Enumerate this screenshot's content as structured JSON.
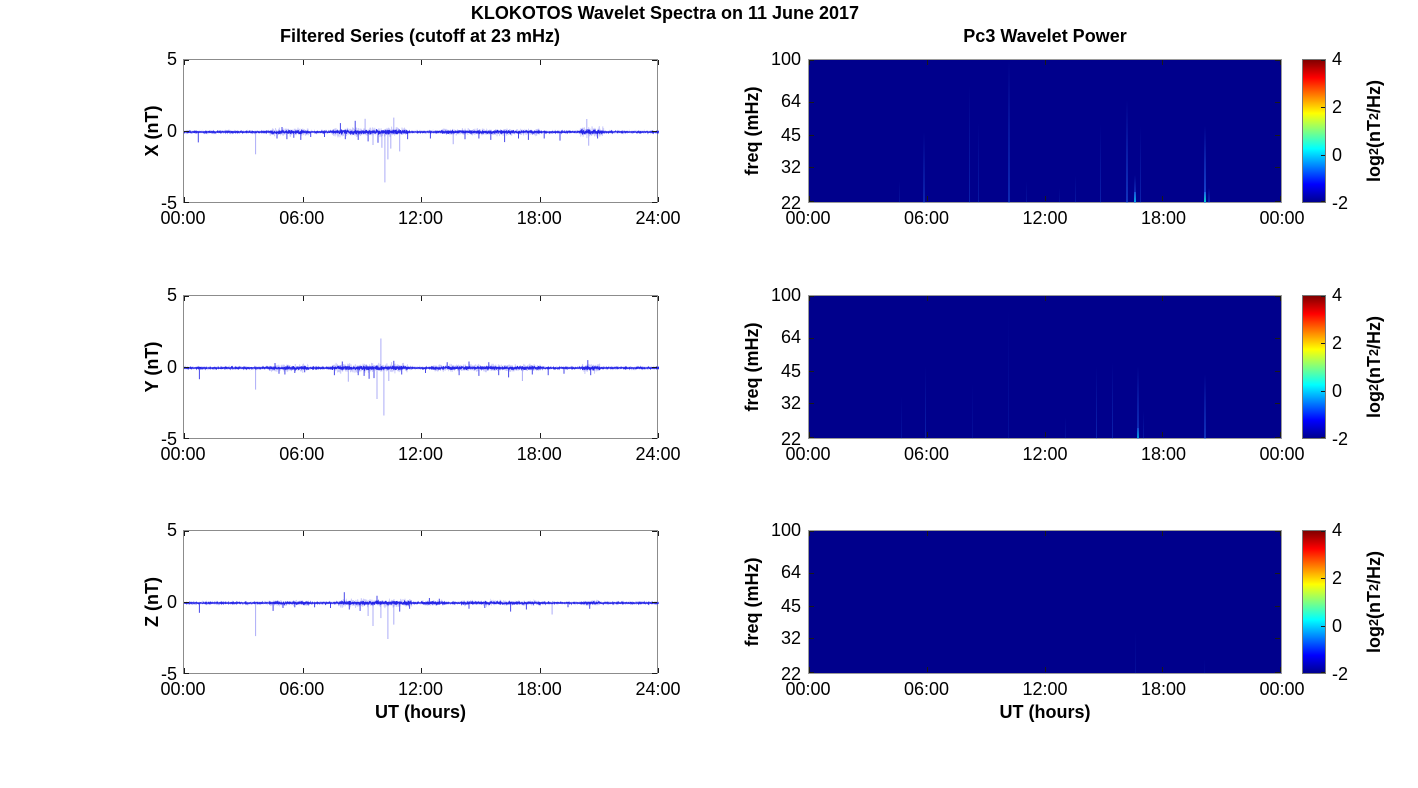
{
  "title": "KLOKOTOS Wavelet Spectra on 11 June 2017",
  "chart_data": {
    "left_column": {
      "type": "line",
      "title": "Filtered Series (cutoff at 23 mHz)",
      "xlabel": "UT (hours)",
      "xlim_hours": [
        0,
        24
      ],
      "xtick_labels": [
        "00:00",
        "06:00",
        "12:00",
        "18:00",
        "24:00"
      ],
      "ylim": [
        -5,
        5
      ],
      "ytick_labels": [
        "5",
        "0",
        "-5"
      ],
      "line_color": "#1a1ae6",
      "spike_color": "#6a6af0",
      "series": [
        {
          "name": "X",
          "ylabel": "X (nT)",
          "noise_seed": 11,
          "noise_std": 0.045,
          "busy_intervals": [
            [
              4.3,
              6.3,
              0.1
            ],
            [
              7.5,
              11.3,
              0.13
            ],
            [
              13.0,
              18.0,
              0.08
            ],
            [
              20.0,
              21.2,
              0.16
            ]
          ],
          "spikes": [
            {
              "t": 0.72,
              "v": -0.72
            },
            {
              "t": 3.62,
              "v": -1.55
            },
            {
              "t": 4.7,
              "v": -0.45
            },
            {
              "t": 4.95,
              "v": 0.35
            },
            {
              "t": 5.2,
              "v": -0.5
            },
            {
              "t": 5.55,
              "v": -0.4
            },
            {
              "t": 5.9,
              "v": -0.55
            },
            {
              "t": 6.4,
              "v": -0.35
            },
            {
              "t": 7.1,
              "v": -0.35
            },
            {
              "t": 7.9,
              "v": 0.62
            },
            {
              "t": 8.15,
              "v": -0.5
            },
            {
              "t": 8.65,
              "v": 0.78
            },
            {
              "t": 8.8,
              "v": -0.55
            },
            {
              "t": 9.15,
              "v": 0.92
            },
            {
              "t": 9.3,
              "v": -0.65
            },
            {
              "t": 9.55,
              "v": -0.9
            },
            {
              "t": 9.8,
              "v": -0.75
            },
            {
              "t": 10.0,
              "v": -1.1
            },
            {
              "t": 10.15,
              "v": -3.5
            },
            {
              "t": 10.3,
              "v": -1.9
            },
            {
              "t": 10.45,
              "v": -1.15
            },
            {
              "t": 10.6,
              "v": 1.0
            },
            {
              "t": 10.9,
              "v": -1.35
            },
            {
              "t": 11.3,
              "v": -0.5
            },
            {
              "t": 12.45,
              "v": -0.45
            },
            {
              "t": 13.6,
              "v": -0.85
            },
            {
              "t": 14.2,
              "v": -0.5
            },
            {
              "t": 14.9,
              "v": -0.45
            },
            {
              "t": 15.5,
              "v": -0.55
            },
            {
              "t": 16.2,
              "v": -0.7
            },
            {
              "t": 16.9,
              "v": -0.45
            },
            {
              "t": 17.4,
              "v": -0.55
            },
            {
              "t": 18.2,
              "v": -0.45
            },
            {
              "t": 19.0,
              "v": -0.6
            },
            {
              "t": 20.35,
              "v": 0.9
            },
            {
              "t": 20.45,
              "v": -0.95
            },
            {
              "t": 20.9,
              "v": -0.45
            }
          ]
        },
        {
          "name": "Y",
          "ylabel": "Y (nT)",
          "noise_seed": 23,
          "noise_std": 0.045,
          "busy_intervals": [
            [
              4.3,
              6.3,
              0.09
            ],
            [
              7.5,
              11.3,
              0.12
            ],
            [
              12.5,
              18.0,
              0.09
            ],
            [
              20.1,
              21.0,
              0.12
            ]
          ],
          "spikes": [
            {
              "t": 0.78,
              "v": -0.78
            },
            {
              "t": 3.62,
              "v": -1.5
            },
            {
              "t": 4.6,
              "v": 0.35
            },
            {
              "t": 4.8,
              "v": -0.4
            },
            {
              "t": 5.1,
              "v": -0.45
            },
            {
              "t": 5.6,
              "v": -0.35
            },
            {
              "t": 6.1,
              "v": -0.3
            },
            {
              "t": 7.6,
              "v": -0.5
            },
            {
              "t": 8.0,
              "v": 0.45
            },
            {
              "t": 8.3,
              "v": -0.95
            },
            {
              "t": 8.8,
              "v": -0.5
            },
            {
              "t": 9.1,
              "v": -0.55
            },
            {
              "t": 9.35,
              "v": -0.75
            },
            {
              "t": 9.6,
              "v": -0.7
            },
            {
              "t": 9.75,
              "v": -2.15
            },
            {
              "t": 9.95,
              "v": 2.05
            },
            {
              "t": 10.1,
              "v": -3.3
            },
            {
              "t": 10.35,
              "v": -0.9
            },
            {
              "t": 10.6,
              "v": 0.5
            },
            {
              "t": 11.0,
              "v": -0.45
            },
            {
              "t": 12.2,
              "v": -0.35
            },
            {
              "t": 13.3,
              "v": 0.4
            },
            {
              "t": 13.9,
              "v": -0.5
            },
            {
              "t": 14.4,
              "v": 0.45
            },
            {
              "t": 14.9,
              "v": -0.55
            },
            {
              "t": 15.4,
              "v": 0.4
            },
            {
              "t": 15.9,
              "v": -0.5
            },
            {
              "t": 16.4,
              "v": -0.65
            },
            {
              "t": 17.1,
              "v": -0.9
            },
            {
              "t": 17.6,
              "v": -0.45
            },
            {
              "t": 18.4,
              "v": -0.5
            },
            {
              "t": 19.2,
              "v": -0.4
            },
            {
              "t": 20.4,
              "v": 0.55
            },
            {
              "t": 20.55,
              "v": -0.5
            }
          ]
        },
        {
          "name": "Z",
          "ylabel": "Z (nT)",
          "noise_seed": 37,
          "noise_std": 0.04,
          "busy_intervals": [
            [
              4.3,
              6.3,
              0.07
            ],
            [
              7.8,
              11.5,
              0.11
            ],
            [
              12.0,
              13.2,
              0.07
            ],
            [
              14.0,
              18.0,
              0.06
            ],
            [
              20.2,
              21.0,
              0.07
            ]
          ],
          "spikes": [
            {
              "t": 0.78,
              "v": -0.68
            },
            {
              "t": 3.62,
              "v": -2.3
            },
            {
              "t": 4.5,
              "v": -0.55
            },
            {
              "t": 5.0,
              "v": -0.35
            },
            {
              "t": 5.6,
              "v": -0.3
            },
            {
              "t": 6.6,
              "v": -0.3
            },
            {
              "t": 7.4,
              "v": -0.35
            },
            {
              "t": 8.1,
              "v": 0.75
            },
            {
              "t": 8.35,
              "v": -0.45
            },
            {
              "t": 8.9,
              "v": -0.55
            },
            {
              "t": 9.3,
              "v": -0.9
            },
            {
              "t": 9.55,
              "v": -1.6
            },
            {
              "t": 9.75,
              "v": 0.5
            },
            {
              "t": 9.95,
              "v": -1.05
            },
            {
              "t": 10.3,
              "v": -2.5
            },
            {
              "t": 10.6,
              "v": -1.5
            },
            {
              "t": 10.9,
              "v": -0.6
            },
            {
              "t": 11.4,
              "v": -0.4
            },
            {
              "t": 12.4,
              "v": 0.35
            },
            {
              "t": 12.9,
              "v": 0.3
            },
            {
              "t": 14.4,
              "v": -0.4
            },
            {
              "t": 15.2,
              "v": -0.35
            },
            {
              "t": 16.5,
              "v": -0.6
            },
            {
              "t": 17.3,
              "v": -0.45
            },
            {
              "t": 18.6,
              "v": -0.8
            },
            {
              "t": 19.4,
              "v": -0.3
            },
            {
              "t": 20.5,
              "v": -0.4
            }
          ]
        }
      ]
    },
    "right_column": {
      "type": "heatmap",
      "title": "Pc3 Wavelet Power",
      "xlabel": "UT (hours)",
      "xlim_hours": [
        0,
        24
      ],
      "xtick_labels": [
        "00:00",
        "06:00",
        "12:00",
        "18:00",
        "00:00"
      ],
      "ylabel": "freq (mHz)",
      "y_scale": "log",
      "freq_lim_mhz": [
        22,
        100
      ],
      "ytick_values": [
        100,
        64,
        45,
        32,
        22
      ],
      "ytick_labels": [
        "100",
        "64",
        "45",
        "32",
        "22"
      ],
      "background_color": "#00008c",
      "background_value_log2": -2,
      "streak_color": "#2878ff",
      "colorbar": {
        "range": [
          -2,
          4
        ],
        "tick_labels": [
          "4",
          "2",
          "0",
          "-2"
        ],
        "tick_values": [
          4,
          2,
          0,
          -2
        ],
        "label_parts": {
          "t1": "log",
          "sub1": "2",
          "t2": "(nT",
          "sup1": "2",
          "t3": "/Hz)"
        },
        "gradient": [
          {
            "c": "#00008f",
            "p": 0
          },
          {
            "c": "#0000ff",
            "p": 12.5
          },
          {
            "c": "#00ffff",
            "p": 37.5
          },
          {
            "c": "#ffff00",
            "p": 62.5
          },
          {
            "c": "#ff0000",
            "p": 87.5
          },
          {
            "c": "#800000",
            "p": 100
          }
        ]
      },
      "panels": [
        {
          "name": "X",
          "streaks": [
            {
              "t": 4.6,
              "f_top": 28,
              "i": 0.15
            },
            {
              "t": 5.8,
              "f_top": 47,
              "i": 0.3
            },
            {
              "t": 8.15,
              "f_top": 77,
              "i": 0.28
            },
            {
              "t": 8.6,
              "f_top": 52,
              "i": 0.2
            },
            {
              "t": 10.1,
              "f_top": 100,
              "i": 0.35
            },
            {
              "t": 11.05,
              "f_top": 28,
              "i": 0.15
            },
            {
              "t": 12.7,
              "f_top": 26,
              "i": 0.12
            },
            {
              "t": 13.5,
              "f_top": 30,
              "i": 0.18
            },
            {
              "t": 14.8,
              "f_top": 51,
              "i": 0.26
            },
            {
              "t": 16.1,
              "f_top": 66,
              "i": 0.42
            },
            {
              "t": 16.5,
              "f_top": 30,
              "i": 0.5,
              "bottom": "#00b4e6"
            },
            {
              "t": 16.85,
              "f_top": 50,
              "i": 0.28
            },
            {
              "t": 20.1,
              "f_top": 50,
              "i": 0.6,
              "bottom": "#00e6c8"
            },
            {
              "t": 20.3,
              "f_top": 26,
              "i": 0.3
            }
          ]
        },
        {
          "name": "Y",
          "streaks": [
            {
              "t": 4.7,
              "f_top": 35,
              "i": 0.14
            },
            {
              "t": 5.9,
              "f_top": 48,
              "i": 0.26
            },
            {
              "t": 8.3,
              "f_top": 40,
              "i": 0.12
            },
            {
              "t": 10.1,
              "f_top": 88,
              "i": 0.12
            },
            {
              "t": 13.0,
              "f_top": 28,
              "i": 0.14
            },
            {
              "t": 14.6,
              "f_top": 48,
              "i": 0.28
            },
            {
              "t": 15.4,
              "f_top": 50,
              "i": 0.28
            },
            {
              "t": 16.7,
              "f_top": 48,
              "i": 0.4,
              "bottom": "#00aae0"
            },
            {
              "t": 17.0,
              "f_top": 30,
              "i": 0.2
            },
            {
              "t": 20.1,
              "f_top": 44,
              "i": 0.42
            }
          ]
        },
        {
          "name": "Z",
          "streaks": [
            {
              "t": 16.6,
              "f_top": 35,
              "i": 0.12
            },
            {
              "t": 20.1,
              "f_top": 26,
              "i": 0.08
            }
          ]
        }
      ]
    }
  }
}
